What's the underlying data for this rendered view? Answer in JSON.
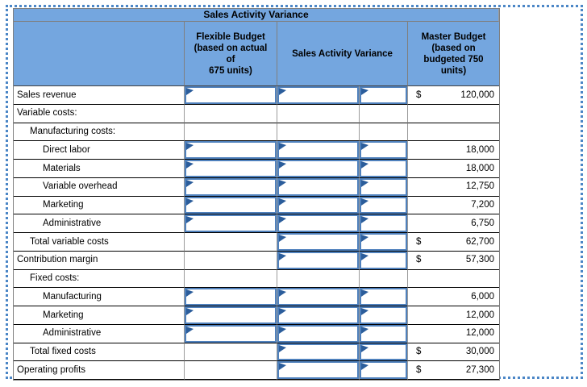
{
  "page": {
    "colors": {
      "header_bg": "#74a6df",
      "input_border": "#4f81bd",
      "flag_icon": "#2b5d9b",
      "selection_outline": "#4b86c6",
      "gridline_horizontal": "#000000",
      "gridline_vertical": "#9b9b9b"
    },
    "icons": {
      "input_flag": "small right-pointing triangle in top-left corner of each editable cell"
    }
  },
  "table": {
    "title": "Sales Activity Variance",
    "columns": {
      "row_label_header": "",
      "flexible_budget": "Flexible Budget\n(based on actual\nof\n675 units)",
      "sales_activity_variance": "Sales Activity Variance",
      "master_budget": "Master Budget\n(based on\nbudgeted 750\nunits)"
    },
    "rows": [
      {
        "label": "Sales revenue",
        "indent": 0,
        "flex_input": true,
        "variance_input": true,
        "fu_input": true,
        "master_currency": "$",
        "master_value": "120,000"
      },
      {
        "label": "Variable costs:",
        "indent": 0,
        "flex_input": false,
        "variance_input": false,
        "fu_input": false,
        "master_currency": "",
        "master_value": ""
      },
      {
        "label": "Manufacturing costs:",
        "indent": 1,
        "flex_input": false,
        "variance_input": false,
        "fu_input": false,
        "master_currency": "",
        "master_value": ""
      },
      {
        "label": "Direct labor",
        "indent": 2,
        "flex_input": true,
        "variance_input": true,
        "fu_input": true,
        "master_currency": "",
        "master_value": "18,000"
      },
      {
        "label": "Materials",
        "indent": 2,
        "flex_input": true,
        "variance_input": true,
        "fu_input": true,
        "master_currency": "",
        "master_value": "18,000"
      },
      {
        "label": "Variable overhead",
        "indent": 2,
        "flex_input": true,
        "variance_input": true,
        "fu_input": true,
        "master_currency": "",
        "master_value": "12,750"
      },
      {
        "label": "Marketing",
        "indent": 2,
        "flex_input": true,
        "variance_input": true,
        "fu_input": true,
        "master_currency": "",
        "master_value": "7,200"
      },
      {
        "label": "Administrative",
        "indent": 2,
        "flex_input": true,
        "variance_input": true,
        "fu_input": true,
        "master_currency": "",
        "master_value": "6,750"
      },
      {
        "label": "Total variable costs",
        "indent": 1,
        "flex_input": false,
        "variance_input": true,
        "fu_input": true,
        "master_currency": "$",
        "master_value": "62,700"
      },
      {
        "label": "Contribution margin",
        "indent": 0,
        "flex_input": false,
        "variance_input": true,
        "fu_input": true,
        "master_currency": "$",
        "master_value": "57,300"
      },
      {
        "label": "Fixed costs:",
        "indent": 1,
        "flex_input": false,
        "variance_input": false,
        "fu_input": false,
        "master_currency": "",
        "master_value": ""
      },
      {
        "label": "Manufacturing",
        "indent": 2,
        "flex_input": true,
        "variance_input": true,
        "fu_input": true,
        "master_currency": "",
        "master_value": "6,000"
      },
      {
        "label": "Marketing",
        "indent": 2,
        "flex_input": true,
        "variance_input": true,
        "fu_input": true,
        "master_currency": "",
        "master_value": "12,000"
      },
      {
        "label": "Administrative",
        "indent": 2,
        "flex_input": true,
        "variance_input": true,
        "fu_input": true,
        "master_currency": "",
        "master_value": "12,000"
      },
      {
        "label": "Total fixed costs",
        "indent": 1,
        "flex_input": false,
        "variance_input": true,
        "fu_input": true,
        "master_currency": "$",
        "master_value": "30,000"
      },
      {
        "label": "Operating profits",
        "indent": 0,
        "flex_input": false,
        "variance_input": true,
        "fu_input": true,
        "master_currency": "$",
        "master_value": "27,300"
      }
    ]
  }
}
